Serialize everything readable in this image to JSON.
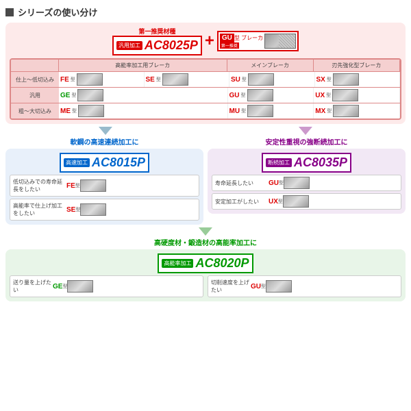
{
  "header": {
    "title": "シリーズの使い分け"
  },
  "section1": {
    "rec_label": "第一推奨材種",
    "tag": "汎用加工",
    "grade": "AC8025P",
    "gu_label": "GU",
    "gu_type": "型 ブレーカ",
    "gu_rec": "第一推奨",
    "table": {
      "headers": [
        "",
        "高能率加工用ブレーカ",
        "メインブレーカ",
        "刃先強化型ブレーカ"
      ],
      "rows": [
        {
          "label": "仕上～低切込み",
          "c1a": "FE",
          "c1b": "SE",
          "c2": "SU",
          "c3": "SX"
        },
        {
          "label": "汎用",
          "c1a": "GE",
          "c1b": "",
          "c2": "GU",
          "c3": "UX"
        },
        {
          "label": "粗～大切込み",
          "c1a": "ME",
          "c1b": "",
          "c2": "MU",
          "c3": "MX"
        }
      ]
    }
  },
  "section2": {
    "title": "軟鋼の高速連続加工に",
    "tag": "高速加工",
    "grade": "AC8015P",
    "opts": [
      {
        "label": "低切込みでの寿命延長をしたい",
        "bk": "FE"
      },
      {
        "label": "高能率で仕上げ加工をしたい",
        "bk": "SE"
      }
    ]
  },
  "section3": {
    "title": "安定性重視の強断続加工に",
    "tag": "断続加工",
    "grade": "AC8035P",
    "opts": [
      {
        "label": "寿命延長したい",
        "bk": "GU"
      },
      {
        "label": "安定加工がしたい",
        "bk": "UX"
      }
    ]
  },
  "section4": {
    "title": "高硬度材・鍛造材の高能率加工に",
    "tag": "高能率加工",
    "grade": "AC8020P",
    "opts": [
      {
        "label": "送り量を上げたい",
        "bk": "GE"
      },
      {
        "label": "切削速度を上げたい",
        "bk": "GU"
      }
    ]
  },
  "suffix": "型"
}
